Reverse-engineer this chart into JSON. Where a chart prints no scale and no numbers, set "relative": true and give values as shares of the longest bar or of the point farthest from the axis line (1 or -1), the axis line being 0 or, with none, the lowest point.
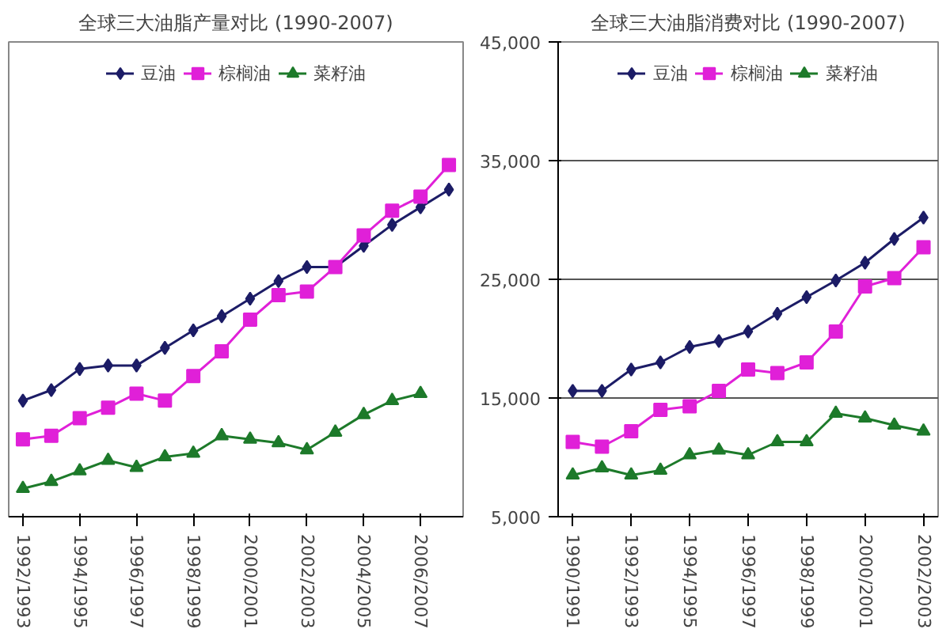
{
  "chart_data": [
    {
      "type": "line",
      "title": "全球三大油脂产量对比 (1990-2007)",
      "relative": true,
      "legend": "top",
      "categories": [
        "1992/1993",
        null,
        "1994/1995",
        null,
        "1996/1997",
        null,
        "1998/1999",
        null,
        "2000/2001",
        null,
        "2002/2003",
        null,
        "2004/2005",
        null,
        "2006/2007",
        null
      ],
      "series": [
        {
          "name": "豆油",
          "color": "#1c1c66",
          "marker": "diamond",
          "values": [
            0.33,
            0.36,
            0.42,
            0.43,
            0.43,
            0.48,
            0.53,
            0.57,
            0.62,
            0.67,
            0.71,
            0.71,
            0.77,
            0.83,
            0.88,
            0.93
          ]
        },
        {
          "name": "棕榈油",
          "color": "#e020d8",
          "marker": "square",
          "values": [
            0.22,
            0.23,
            0.28,
            0.31,
            0.35,
            0.33,
            0.4,
            0.47,
            0.56,
            0.63,
            0.64,
            0.71,
            0.8,
            0.87,
            0.91,
            1.0
          ]
        },
        {
          "name": "菜籽油",
          "color": "#1d7a2a",
          "marker": "triangle",
          "values": [
            0.08,
            0.1,
            0.13,
            0.16,
            0.14,
            0.17,
            0.18,
            0.23,
            0.22,
            0.21,
            0.19,
            0.24,
            0.29,
            0.33,
            0.35,
            null
          ]
        }
      ]
    },
    {
      "type": "line",
      "title": "全球三大油脂消费对比 (1990-2007)",
      "legend": "top",
      "grid": "y",
      "ylim": [
        5000,
        45000
      ],
      "yticks": [
        {
          "value": 5000,
          "label": "5,000"
        },
        {
          "value": 15000,
          "label": "15,000"
        },
        {
          "value": 25000,
          "label": "25,000"
        },
        {
          "value": 35000,
          "label": "35,000"
        },
        {
          "value": 45000,
          "label": "45,000"
        }
      ],
      "categories": [
        "1990/1991",
        null,
        "1992/1993",
        null,
        "1994/1995",
        null,
        "1996/1997",
        null,
        "1998/1999",
        null,
        "2000/2001",
        null,
        "2002/2003"
      ],
      "series": [
        {
          "name": "豆油",
          "color": "#1c1c66",
          "marker": "diamond",
          "values": [
            15600,
            15600,
            17400,
            18000,
            19300,
            19800,
            20600,
            22100,
            23500,
            24900,
            26400,
            28400,
            30200
          ]
        },
        {
          "name": "棕榈油",
          "color": "#e020d8",
          "marker": "square",
          "values": [
            11300,
            10900,
            12200,
            14000,
            14300,
            15600,
            17400,
            17100,
            18000,
            20600,
            24400,
            25100,
            27700
          ]
        },
        {
          "name": "菜籽油",
          "color": "#1d7a2a",
          "marker": "triangle",
          "values": [
            8500,
            9100,
            8500,
            8900,
            10200,
            10600,
            10200,
            11300,
            11300,
            13700,
            13300,
            12700,
            12200
          ]
        }
      ]
    }
  ]
}
